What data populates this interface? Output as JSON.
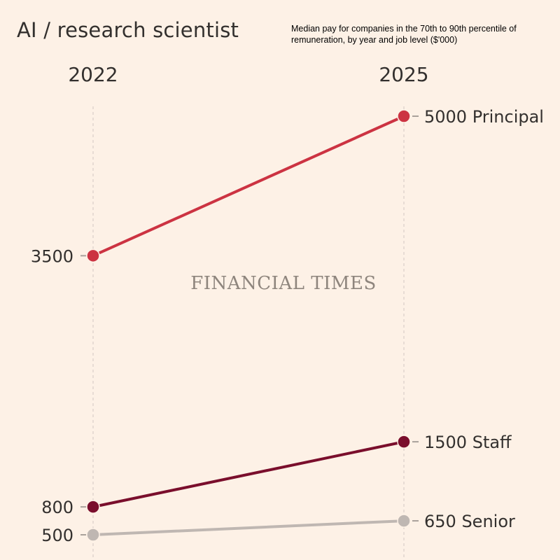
{
  "header": {
    "title": "AI / research scientist",
    "subtitle": "Median pay for companies in the 70th to 90th percentile of remuneration, by year and job level ($'000)"
  },
  "watermark": "FINANCIAL TIMES",
  "chart_data": {
    "type": "line",
    "title": "AI / research scientist",
    "subtitle": "Median pay for companies in the 70th to 90th percentile of remuneration, by year and job level ($'000)",
    "x": [
      "2022",
      "2025"
    ],
    "series": [
      {
        "name": "Principal",
        "values": [
          3500,
          5000
        ],
        "color": "#cc3342",
        "start_label": "3500",
        "end_label": "5000 Principal"
      },
      {
        "name": "Staff",
        "values": [
          800,
          1500
        ],
        "color": "#7a0e2c",
        "start_label": "800",
        "end_label": "1500 Staff"
      },
      {
        "name": "Senior",
        "values": [
          500,
          650
        ],
        "color": "#bfb7b2",
        "start_label": "500",
        "end_label": "650 Senior"
      }
    ],
    "ylim": [
      300,
      5100
    ],
    "grid": false,
    "legend": "direct labels at line ends"
  }
}
